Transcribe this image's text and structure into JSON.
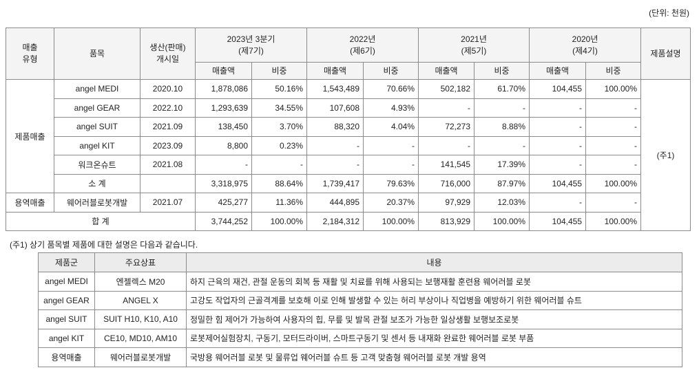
{
  "unit": "(단위: 천원)",
  "sales_table": {
    "header": {
      "sales_type": "매출\n유형",
      "item": "품목",
      "start_date": "생산(판매)\n개시일",
      "description": "제품설명",
      "periods": [
        {
          "label": "2023년 3분기\n(제7기)",
          "columns": [
            "매출액",
            "비중"
          ]
        },
        {
          "label": "2022년\n(제6기)",
          "columns": [
            "매출액",
            "비중"
          ]
        },
        {
          "label": "2021년\n(제5기)",
          "columns": [
            "매출액",
            "비중"
          ]
        },
        {
          "label": "2020년\n(제4기)",
          "columns": [
            "매출액",
            "비중"
          ]
        }
      ]
    },
    "groups": [
      {
        "type": "제품매출",
        "rows": [
          {
            "item": "angel MEDI",
            "date": "2020.10",
            "values": [
              "1,878,086",
              "50.16%",
              "1,543,489",
              "70.66%",
              "502,182",
              "61.70%",
              "104,455",
              "100.00%"
            ]
          },
          {
            "item": "angel GEAR",
            "date": "2022.10",
            "values": [
              "1,293,639",
              "34.55%",
              "107,608",
              "4.93%",
              "-",
              "-",
              "-",
              "-"
            ]
          },
          {
            "item": "angel SUIT",
            "date": "2021.09",
            "values": [
              "138,450",
              "3.70%",
              "88,320",
              "4.04%",
              "72,273",
              "8.88%",
              "-",
              "-"
            ]
          },
          {
            "item": "angel KIT",
            "date": "2023.09",
            "values": [
              "8,800",
              "0.23%",
              "-",
              "-",
              "-",
              "-",
              "-",
              "-"
            ]
          },
          {
            "item": "워크온슈트",
            "date": "2021.08",
            "values": [
              "-",
              "-",
              "-",
              "-",
              "141,545",
              "17.39%",
              "-",
              "-"
            ]
          },
          {
            "item": "소 계",
            "values": [
              "3,318,975",
              "88.64%",
              "1,739,417",
              "79.63%",
              "716,000",
              "87.97%",
              "104,455",
              "100.00%"
            ]
          }
        ]
      },
      {
        "type": "용역매출",
        "rows": [
          {
            "item": "웨어러블로봇개발",
            "date": "2021.07",
            "values": [
              "425,277",
              "11.36%",
              "444,895",
              "20.37%",
              "97,929",
              "12.03%",
              "-",
              "-"
            ]
          }
        ]
      }
    ],
    "total": {
      "label": "합 계",
      "values": [
        "3,744,252",
        "100.00%",
        "2,184,312",
        "100.00%",
        "813,929",
        "100.00%",
        "104,455",
        "100.00%"
      ]
    },
    "note_ref": "(주1)"
  },
  "note": "(주1)  상기 품목별 제품에 대한 설명은 다음과 같습니다.",
  "product_table": {
    "header": [
      "제품군",
      "주요상표",
      "내용"
    ],
    "rows": [
      [
        "angel MEDI",
        "엔젤렉스 M20",
        "하지 근육의 재건, 관절 운동의 회복 등 재활 및 치료를 위해 사용되는 보행재활 훈련용 웨어러블 로봇"
      ],
      [
        "angel GEAR",
        "ANGEL X",
        "고강도 작업자의 근골격계를 보호해 이로 인해 발생할 수 있는 허리 부상이나 직업병을 예방하기 위한 웨어러블 슈트"
      ],
      [
        "angel SUIT",
        "SUIT H10, K10, A10",
        "정밀한 힘 제어가 가능하여 사용자의 힙, 무릎 및 발목 관절 보조가 가능한 일상생활 보행보조로봇"
      ],
      [
        "angel KIT",
        "CE10, MD10, AM10",
        "로봇제어실험장치, 구동기, 모터드라이버, 스마트구동기 및 센서 등 내재화 완료한 웨어러블 로봇 부품"
      ],
      [
        "용역매출",
        "웨어러블로봇개발",
        "국방용 웨어러블 로봇 및 물류업 웨어러블 슈트 등 고객 맞춤형 웨어러블 로봇 개발 용역"
      ]
    ]
  }
}
